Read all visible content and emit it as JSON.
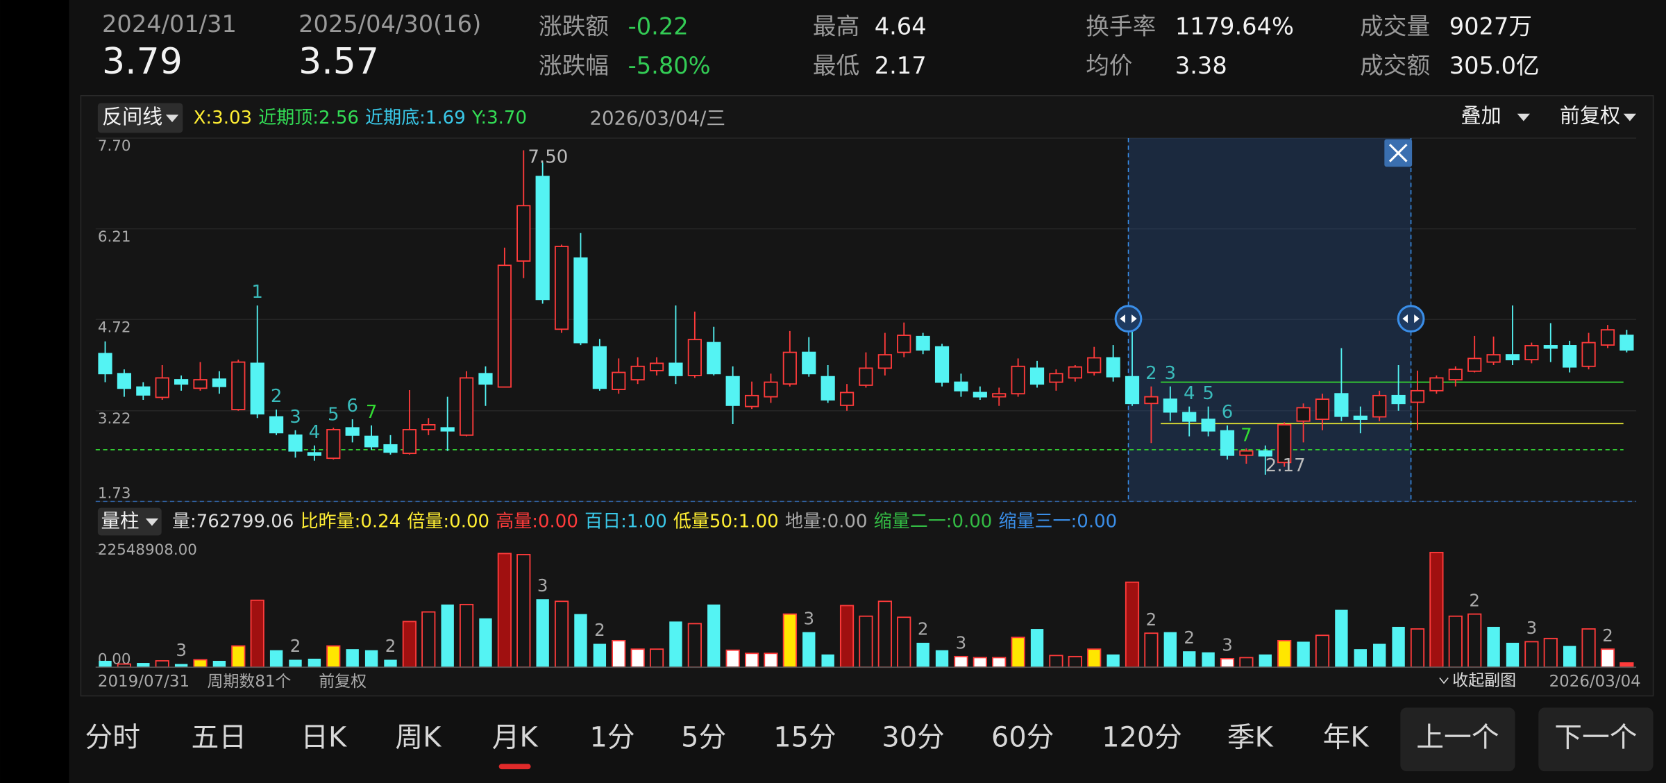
{
  "header": {
    "start_date": "2024/01/31",
    "start_price": "3.79",
    "end_date": "2025/04/30(16)",
    "end_price": "3.57",
    "stats": [
      {
        "label": "涨跌额",
        "value": "-0.22"
      },
      {
        "label": "涨跌幅",
        "value": "-5.80%"
      },
      {
        "label": "最高",
        "value": "4.64"
      },
      {
        "label": "最低",
        "value": "2.17"
      },
      {
        "label": "换手率",
        "value": "1179.64%"
      },
      {
        "label": "均价",
        "value": "3.38"
      },
      {
        "label": "成交量",
        "value": "9027万"
      },
      {
        "label": "成交额",
        "value": "305.0亿"
      }
    ]
  },
  "price_indicator": {
    "name": "反间线",
    "items": [
      {
        "text": "X:3.03",
        "color": "#ffee33"
      },
      {
        "text": "近期顶:2.56",
        "color": "#33dd55"
      },
      {
        "text": "近期底:1.69",
        "color": "#3ac8e8"
      },
      {
        "text": "Y:3.70",
        "color": "#33dd55"
      }
    ],
    "date": "2026/03/04/三",
    "overlay": "叠加",
    "adjust": "前复权"
  },
  "volume_indicator": {
    "name": "量柱",
    "items": [
      {
        "text": "量:762799.06",
        "color": "#dddddd"
      },
      {
        "text": "比昨量:0.24",
        "color": "#ffee33"
      },
      {
        "text": "倍量:0.00",
        "color": "#ffee33"
      },
      {
        "text": "高量:0.00",
        "color": "#ff3b3b"
      },
      {
        "text": "百日:1.00",
        "color": "#3ac8e8"
      },
      {
        "text": "低量50:1.00",
        "color": "#ffee33"
      },
      {
        "text": "地量:0.00",
        "color": "#aaaaaa"
      },
      {
        "text": "缩量二一:0.00",
        "color": "#33bb44"
      },
      {
        "text": "缩量三一:0.00",
        "color": "#3a8ee8"
      }
    ]
  },
  "chart_data": {
    "type": "candlestick",
    "up_color": "#ff3b3b",
    "down_color": "#54f3f3",
    "ylim": [
      1.73,
      7.7
    ],
    "yticks": [
      {
        "value": 7.7,
        "label": "7.70"
      },
      {
        "value": 6.21,
        "label": "6.21"
      },
      {
        "value": 4.72,
        "label": "4.72"
      },
      {
        "value": 3.22,
        "label": "3.22"
      },
      {
        "value": 1.73,
        "label": "1.73"
      }
    ],
    "candles": [
      [
        4.16,
        4.36,
        3.69,
        3.83
      ],
      [
        3.83,
        3.9,
        3.45,
        3.59
      ],
      [
        3.61,
        3.69,
        3.4,
        3.48
      ],
      [
        3.44,
        3.97,
        3.4,
        3.76
      ],
      [
        3.73,
        3.8,
        3.55,
        3.66
      ],
      [
        3.59,
        4.02,
        3.55,
        3.73
      ],
      [
        3.74,
        3.87,
        3.5,
        3.62
      ],
      [
        3.24,
        4.06,
        3.22,
        4.02
      ],
      [
        4.0,
        4.95,
        3.1,
        3.17
      ],
      [
        3.12,
        3.24,
        2.82,
        2.86
      ],
      [
        2.82,
        2.9,
        2.45,
        2.56
      ],
      [
        2.53,
        2.65,
        2.4,
        2.49
      ],
      [
        2.44,
        2.94,
        2.42,
        2.91
      ],
      [
        2.94,
        3.08,
        2.7,
        2.82
      ],
      [
        2.8,
        2.98,
        2.58,
        2.63
      ],
      [
        2.66,
        2.82,
        2.5,
        2.54
      ],
      [
        2.52,
        3.56,
        2.5,
        2.91
      ],
      [
        2.91,
        3.1,
        2.82,
        2.99
      ],
      [
        2.94,
        3.45,
        2.56,
        2.89
      ],
      [
        2.82,
        3.87,
        2.8,
        3.76
      ],
      [
        3.83,
        3.95,
        3.3,
        3.66
      ],
      [
        3.61,
        5.9,
        3.6,
        5.61
      ],
      [
        5.68,
        7.5,
        5.4,
        6.59
      ],
      [
        7.07,
        7.3,
        4.98,
        5.05
      ],
      [
        4.56,
        5.95,
        4.5,
        5.92
      ],
      [
        5.73,
        6.14,
        4.3,
        4.34
      ],
      [
        4.27,
        4.4,
        3.55,
        3.59
      ],
      [
        3.57,
        4.08,
        3.5,
        3.85
      ],
      [
        3.73,
        4.1,
        3.66,
        3.95
      ],
      [
        3.88,
        4.1,
        3.8,
        4.0
      ],
      [
        4.0,
        4.95,
        3.66,
        3.8
      ],
      [
        3.8,
        4.85,
        3.76,
        4.39
      ],
      [
        4.34,
        4.6,
        3.8,
        3.83
      ],
      [
        3.78,
        3.95,
        3.0,
        3.31
      ],
      [
        3.29,
        3.7,
        3.25,
        3.47
      ],
      [
        3.45,
        3.83,
        3.35,
        3.69
      ],
      [
        3.66,
        4.53,
        3.62,
        4.18
      ],
      [
        4.18,
        4.43,
        3.78,
        3.83
      ],
      [
        3.78,
        3.97,
        3.35,
        3.4
      ],
      [
        3.31,
        3.66,
        3.22,
        3.52
      ],
      [
        3.64,
        4.18,
        3.6,
        3.92
      ],
      [
        3.92,
        4.5,
        3.8,
        4.14
      ],
      [
        4.18,
        4.67,
        4.1,
        4.46
      ],
      [
        4.44,
        4.5,
        4.15,
        4.22
      ],
      [
        4.27,
        4.32,
        3.62,
        3.69
      ],
      [
        3.69,
        3.83,
        3.45,
        3.55
      ],
      [
        3.52,
        3.62,
        3.4,
        3.45
      ],
      [
        3.45,
        3.6,
        3.3,
        3.5
      ],
      [
        3.5,
        4.08,
        3.45,
        3.95
      ],
      [
        3.92,
        4.04,
        3.6,
        3.66
      ],
      [
        3.69,
        3.9,
        3.55,
        3.83
      ],
      [
        3.76,
        3.97,
        3.7,
        3.94
      ],
      [
        3.85,
        4.27,
        3.8,
        4.09
      ],
      [
        4.09,
        4.3,
        3.7,
        3.78
      ],
      [
        3.78,
        4.74,
        3.3,
        3.34
      ],
      [
        3.34,
        3.62,
        2.69,
        3.45
      ],
      [
        3.41,
        3.62,
        3.05,
        3.2
      ],
      [
        3.19,
        3.29,
        2.8,
        3.05
      ],
      [
        3.08,
        3.29,
        2.8,
        2.89
      ],
      [
        2.89,
        2.98,
        2.42,
        2.49
      ],
      [
        2.49,
        2.6,
        2.35,
        2.56
      ],
      [
        2.56,
        2.65,
        2.17,
        2.48
      ],
      [
        2.37,
        3.03,
        2.3,
        2.99
      ],
      [
        3.05,
        3.34,
        2.7,
        3.27
      ],
      [
        3.08,
        3.5,
        2.9,
        3.41
      ],
      [
        3.5,
        4.25,
        3.05,
        3.13
      ],
      [
        3.13,
        3.29,
        2.85,
        3.08
      ],
      [
        3.12,
        3.55,
        3.05,
        3.47
      ],
      [
        3.47,
        3.97,
        3.22,
        3.34
      ],
      [
        3.36,
        3.88,
        2.9,
        3.55
      ],
      [
        3.55,
        3.8,
        3.5,
        3.76
      ],
      [
        3.73,
        3.95,
        3.62,
        3.9
      ],
      [
        3.87,
        4.45,
        3.85,
        4.08
      ],
      [
        4.02,
        4.44,
        3.97,
        4.14
      ],
      [
        4.14,
        4.95,
        3.97,
        4.06
      ],
      [
        4.06,
        4.34,
        4.0,
        4.29
      ],
      [
        4.29,
        4.66,
        4.02,
        4.25
      ],
      [
        4.29,
        4.37,
        3.85,
        3.94
      ],
      [
        3.95,
        4.5,
        3.9,
        4.34
      ],
      [
        4.3,
        4.63,
        4.25,
        4.55
      ],
      [
        4.46,
        4.55,
        4.18,
        4.22
      ]
    ],
    "high_label": {
      "index": 22,
      "label": "7.50"
    },
    "low_label": {
      "index": 61,
      "label": "2.17"
    },
    "annotations": [
      {
        "index": 8,
        "text": "1",
        "color": "#3abbbb"
      },
      {
        "index": 9,
        "text": "2",
        "color": "#3abbbb"
      },
      {
        "index": 10,
        "text": "3",
        "color": "#3abbbb"
      },
      {
        "index": 11,
        "text": "4",
        "color": "#3abbbb"
      },
      {
        "index": 12,
        "text": "5",
        "color": "#3abbbb"
      },
      {
        "index": 13,
        "text": "6",
        "color": "#3abbbb"
      },
      {
        "index": 14,
        "text": "7",
        "color": "#33dd33"
      },
      {
        "index": 55,
        "text": "2",
        "color": "#3abbbb"
      },
      {
        "index": 56,
        "text": "3",
        "color": "#3abbbb"
      },
      {
        "index": 57,
        "text": "4",
        "color": "#3abbbb"
      },
      {
        "index": 58,
        "text": "5",
        "color": "#3abbbb"
      },
      {
        "index": 59,
        "text": "6",
        "color": "#3abbbb"
      },
      {
        "index": 60,
        "text": "7",
        "color": "#33dd33"
      }
    ],
    "reference_lines": [
      {
        "value": 2.58,
        "color": "#33cc33",
        "dashed": true,
        "from": 0
      },
      {
        "value": 3.69,
        "color": "#33cc33",
        "dashed": false,
        "from": 56
      },
      {
        "value": 3.01,
        "color": "#dddd33",
        "dashed": false,
        "from": 56
      }
    ],
    "volume_ylim": [
      0,
      22548908
    ],
    "volume_ticks": [
      {
        "value": 22548908,
        "label": "22548908.00"
      },
      {
        "value": 0,
        "label": "0.00"
      }
    ],
    "volume_edge_color": "#ff3b3b",
    "volumes": [
      1252716,
      626358,
      835144,
      1252716,
      626358,
      1461502,
      1252716,
      4175720,
      13153518,
      3340576,
      1461502,
      1670288,
      4175720,
      3549362,
      3340576,
      1461502,
      8977798,
      10856872,
      12318374,
      12318374,
      9604156,
      22340102,
      22131316,
      13362304,
      12944732,
      10439300,
      4593292,
      5219650,
      3549362,
      3549362,
      8977798,
      8560226,
      12318374,
      3340576,
      2714218,
      2714218,
      10439300,
      6889938,
      2505432,
      12109588,
      10021728,
      12944732,
      9812942,
      4802078,
      3340576,
      2087860,
      1879074,
      1879074,
      5846008,
      7516296,
      2296646,
      2087860,
      3549362,
      2505432,
      16702880,
      6681152,
      6889938,
      3131790,
      2923004,
      1670288,
      1879074,
      2505432,
      5219650,
      5010864,
      6263580,
      11274444,
      3549362,
      4593292,
      7933868,
      7516296,
      22548908,
      10021728,
      10439300,
      7933868,
      4802078,
      5010864,
      5637222,
      4175720,
      7516296,
      3549362,
      835144
    ],
    "volume_colors": [
      "#54f3f3",
      "none",
      "#54f3f3",
      "none",
      "#54f3f3",
      "#ffe600",
      "#54f3f3",
      "#ffe600",
      "#a01010",
      "#54f3f3",
      "#54f3f3",
      "#54f3f3",
      "#ffe600",
      "#54f3f3",
      "#54f3f3",
      "#54f3f3",
      "#a01010",
      "none",
      "#54f3f3",
      "none",
      "#54f3f3",
      "#a01010",
      "none",
      "#54f3f3",
      "none",
      "#54f3f3",
      "#54f3f3",
      "#ffffff",
      "#ffffff",
      "none",
      "#54f3f3",
      "none",
      "#54f3f3",
      "#ffffff",
      "#ffffff",
      "#ffffff",
      "#ffe600",
      "#54f3f3",
      "#54f3f3",
      "#a01010",
      "none",
      "none",
      "none",
      "#54f3f3",
      "#54f3f3",
      "#ffffff",
      "#ffffff",
      "#ffffff",
      "#ffe600",
      "#54f3f3",
      "none",
      "none",
      "#ffe600",
      "#54f3f3",
      "#a01010",
      "none",
      "#54f3f3",
      "#54f3f3",
      "#54f3f3",
      "#ffffff",
      "none",
      "#54f3f3",
      "#ffe600",
      "#54f3f3",
      "none",
      "#54f3f3",
      "#54f3f3",
      "#54f3f3",
      "#54f3f3",
      "none",
      "#a01010",
      "none",
      "none",
      "#54f3f3",
      "#54f3f3",
      "none",
      "none",
      "#54f3f3",
      "none",
      "#ffffff",
      "#ff3b3b"
    ],
    "volume_annotations": [
      {
        "index": 4,
        "text": "3"
      },
      {
        "index": 10,
        "text": "2"
      },
      {
        "index": 15,
        "text": "2"
      },
      {
        "index": 23,
        "text": "3"
      },
      {
        "index": 26,
        "text": "2"
      },
      {
        "index": 37,
        "text": "3"
      },
      {
        "index": 43,
        "text": "2"
      },
      {
        "index": 45,
        "text": "3"
      },
      {
        "index": 55,
        "text": "2"
      },
      {
        "index": 57,
        "text": "2"
      },
      {
        "index": 59,
        "text": "3"
      },
      {
        "index": 72,
        "text": "2"
      },
      {
        "index": 75,
        "text": "3"
      },
      {
        "index": 79,
        "text": "2"
      }
    ]
  },
  "footer": {
    "start_date": "2019/07/31",
    "period_count": "周期数81个",
    "adjust": "前复权",
    "collapse": "收起副图",
    "end_date": "2026/03/04"
  },
  "tabs": [
    "分时",
    "五日",
    "日K",
    "周K",
    "月K",
    "1分",
    "5分",
    "15分",
    "30分",
    "60分",
    "120分",
    "季K",
    "年K"
  ],
  "active_tab": 4,
  "buttons": [
    "上一个",
    "下一个"
  ]
}
